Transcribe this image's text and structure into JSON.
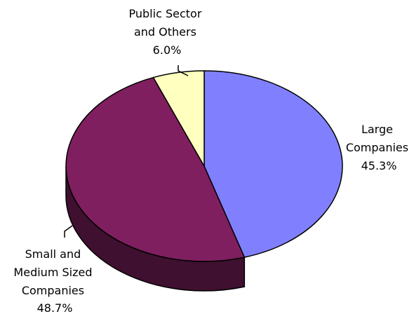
{
  "chart_data": {
    "type": "pie",
    "style": "3d",
    "legend": "none",
    "slices": [
      {
        "name": "Large Companies",
        "label_lines": [
          "Large",
          "Companies"
        ],
        "value": 45.3,
        "value_label": "45.3%",
        "color": "#8080FF",
        "side_color": "#3F3F85"
      },
      {
        "name": "Small and Medium Sized Companies",
        "label_lines": [
          "Small and",
          "Medium Sized",
          "Companies"
        ],
        "value": 48.7,
        "value_label": "48.7%",
        "color": "#7F1F5F",
        "side_color": "#3F1030"
      },
      {
        "name": "Public Sector and Others",
        "label_lines": [
          "Public Sector",
          "and Others"
        ],
        "value": 6.0,
        "value_label": "6.0%",
        "color": "#FFFFC0",
        "side_color": "#8F8F60"
      }
    ]
  }
}
